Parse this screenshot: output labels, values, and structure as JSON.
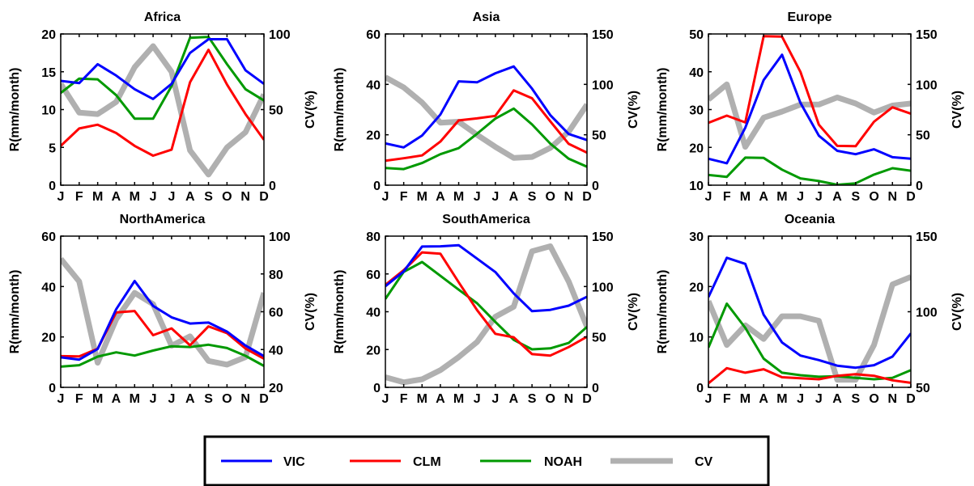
{
  "months": [
    "J",
    "F",
    "M",
    "A",
    "M",
    "J",
    "J",
    "A",
    "S",
    "O",
    "N",
    "D"
  ],
  "series_styles": [
    {
      "name": "VIC",
      "color": "#0000ff",
      "width": 3
    },
    {
      "name": "CLM",
      "color": "#ff0000",
      "width": 3
    },
    {
      "name": "NOAH",
      "color": "#009900",
      "width": 3
    },
    {
      "name": "CV",
      "color": "#b0b0b0",
      "width": 7
    }
  ],
  "chart_data": [
    {
      "type": "line",
      "title": "Africa",
      "ylabel": "R(mm/month)",
      "ylim": [
        0,
        20
      ],
      "yticks": [
        0,
        5,
        10,
        15,
        20
      ],
      "y2label": "CV(%)",
      "y2lim": [
        0,
        100
      ],
      "y2ticks": [
        0,
        50,
        100
      ],
      "categories": [
        "J",
        "F",
        "M",
        "A",
        "M",
        "J",
        "J",
        "A",
        "S",
        "O",
        "N",
        "D"
      ],
      "series": [
        {
          "name": "VIC",
          "axis": "left",
          "values": [
            13.8,
            13.5,
            16.0,
            14.5,
            12.7,
            11.4,
            13.4,
            17.5,
            19.3,
            19.3,
            15.2,
            13.4
          ]
        },
        {
          "name": "CLM",
          "axis": "left",
          "values": [
            5.2,
            7.5,
            8.0,
            6.9,
            5.2,
            3.9,
            4.7,
            13.6,
            17.9,
            13.3,
            9.4,
            6.0
          ]
        },
        {
          "name": "NOAH",
          "axis": "left",
          "values": [
            12.2,
            14.1,
            14.0,
            11.9,
            8.8,
            8.8,
            13.1,
            19.5,
            19.6,
            16.0,
            12.7,
            11.2
          ]
        },
        {
          "name": "CV",
          "axis": "right",
          "values": [
            67,
            48,
            47,
            55,
            78,
            92,
            75,
            23,
            7,
            25,
            35,
            60
          ]
        }
      ]
    },
    {
      "type": "line",
      "title": "Asia",
      "ylabel": "R(mm/month)",
      "ylim": [
        0,
        60
      ],
      "yticks": [
        0,
        20,
        40,
        60
      ],
      "y2label": "CV(%)",
      "y2lim": [
        0,
        150
      ],
      "y2ticks": [
        0,
        50,
        100,
        150
      ],
      "categories": [
        "J",
        "F",
        "M",
        "A",
        "M",
        "J",
        "J",
        "A",
        "S",
        "O",
        "N",
        "D"
      ],
      "series": [
        {
          "name": "VIC",
          "axis": "left",
          "values": [
            16.6,
            15.0,
            19.7,
            28.0,
            41.2,
            40.8,
            44.4,
            47.1,
            38.3,
            27.8,
            20.3,
            17.9
          ]
        },
        {
          "name": "CLM",
          "axis": "left",
          "values": [
            9.7,
            10.7,
            11.8,
            17.3,
            25.7,
            26.5,
            27.5,
            37.6,
            34.5,
            25.3,
            16.4,
            12.9
          ]
        },
        {
          "name": "NOAH",
          "axis": "left",
          "values": [
            6.8,
            6.4,
            8.8,
            12.3,
            14.7,
            20.4,
            26.4,
            30.4,
            24.1,
            16.5,
            10.5,
            7.3
          ]
        },
        {
          "name": "CV",
          "axis": "right",
          "values": [
            107,
            97,
            82,
            62,
            63,
            50,
            38,
            27,
            28,
            37,
            53,
            80
          ]
        }
      ]
    },
    {
      "type": "line",
      "title": "Europe",
      "ylabel": "R(mm/month)",
      "ylim": [
        10,
        50
      ],
      "yticks": [
        10,
        20,
        30,
        40,
        50
      ],
      "y2label": "CV(%)",
      "y2lim": [
        0,
        150
      ],
      "y2ticks": [
        0,
        50,
        100,
        150
      ],
      "categories": [
        "J",
        "F",
        "M",
        "A",
        "M",
        "J",
        "J",
        "A",
        "S",
        "O",
        "N",
        "D"
      ],
      "series": [
        {
          "name": "VIC",
          "axis": "left",
          "values": [
            17.0,
            15.8,
            25.2,
            37.8,
            44.5,
            31.8,
            23.1,
            19.1,
            18.2,
            19.5,
            17.4,
            17.0
          ]
        },
        {
          "name": "CLM",
          "axis": "left",
          "values": [
            26.5,
            28.4,
            26.6,
            49.4,
            49.3,
            40.0,
            26.0,
            20.4,
            20.3,
            26.8,
            30.6,
            28.9
          ]
        },
        {
          "name": "NOAH",
          "axis": "left",
          "values": [
            12.7,
            12.2,
            17.3,
            17.2,
            14.1,
            11.8,
            11.1,
            10.1,
            10.5,
            12.8,
            14.5,
            13.8
          ]
        },
        {
          "name": "CV",
          "axis": "right",
          "values": [
            85,
            100,
            38,
            67,
            73,
            80,
            80,
            87,
            81,
            72,
            79,
            81
          ]
        }
      ]
    },
    {
      "type": "line",
      "title": "NorthAmerica",
      "ylabel": "R(mm/month)",
      "ylim": [
        0,
        60
      ],
      "yticks": [
        0,
        20,
        40,
        60
      ],
      "y2label": "CV(%)",
      "y2lim": [
        20,
        100
      ],
      "y2ticks": [
        20,
        40,
        60,
        80,
        100
      ],
      "categories": [
        "J",
        "F",
        "M",
        "A",
        "M",
        "J",
        "J",
        "A",
        "S",
        "O",
        "N",
        "D"
      ],
      "series": [
        {
          "name": "VIC",
          "axis": "left",
          "values": [
            11.9,
            11.0,
            15.2,
            31.0,
            42.2,
            32.3,
            27.8,
            25.3,
            25.7,
            22.1,
            16.6,
            12.4
          ]
        },
        {
          "name": "CLM",
          "axis": "left",
          "values": [
            12.4,
            12.3,
            15.3,
            29.7,
            30.3,
            20.7,
            23.4,
            16.7,
            24.2,
            21.5,
            15.4,
            11.4
          ]
        },
        {
          "name": "NOAH",
          "axis": "left",
          "values": [
            8.2,
            8.8,
            12.2,
            13.9,
            12.6,
            14.6,
            16.3,
            16.0,
            16.9,
            15.6,
            12.5,
            8.5
          ]
        },
        {
          "name": "CV",
          "axis": "right",
          "values": [
            88,
            76,
            33,
            56,
            70,
            64,
            42,
            47,
            34,
            32,
            36,
            70
          ]
        }
      ]
    },
    {
      "type": "line",
      "title": "SouthAmerica",
      "ylabel": "R(mm/month)",
      "ylim": [
        0,
        80
      ],
      "yticks": [
        0,
        20,
        40,
        60,
        80
      ],
      "y2label": "CV(%)",
      "y2lim": [
        0,
        150
      ],
      "y2ticks": [
        0,
        50,
        100,
        150
      ],
      "categories": [
        "J",
        "F",
        "M",
        "A",
        "M",
        "J",
        "J",
        "A",
        "S",
        "O",
        "N",
        "D"
      ],
      "series": [
        {
          "name": "VIC",
          "axis": "left",
          "values": [
            53.5,
            61.3,
            74.5,
            74.6,
            75.2,
            68.1,
            61.0,
            49.7,
            40.3,
            41.0,
            43.2,
            47.9
          ]
        },
        {
          "name": "CLM",
          "axis": "left",
          "values": [
            54.2,
            62.0,
            71.4,
            70.7,
            55.6,
            40.9,
            28.3,
            26.5,
            17.6,
            16.8,
            21.3,
            26.8
          ]
        },
        {
          "name": "NOAH",
          "axis": "left",
          "values": [
            46.8,
            61.1,
            66.3,
            59.0,
            51.7,
            44.5,
            34.6,
            25.1,
            20.1,
            20.6,
            23.5,
            32.0
          ]
        },
        {
          "name": "CV",
          "axis": "right",
          "values": [
            10,
            5,
            8,
            17,
            30,
            45,
            70,
            80,
            135,
            140,
            105,
            60
          ]
        }
      ]
    },
    {
      "type": "line",
      "title": "Oceania",
      "ylabel": "R(mm/month)",
      "ylim": [
        0,
        30
      ],
      "yticks": [
        0,
        10,
        20,
        30
      ],
      "y2label": "CV(%)",
      "y2lim": [
        50,
        150
      ],
      "y2ticks": [
        50,
        100,
        150
      ],
      "categories": [
        "J",
        "F",
        "M",
        "A",
        "M",
        "J",
        "J",
        "A",
        "S",
        "O",
        "N",
        "D"
      ],
      "series": [
        {
          "name": "VIC",
          "axis": "left",
          "values": [
            17.9,
            25.7,
            24.5,
            14.4,
            8.9,
            6.3,
            5.4,
            4.3,
            3.9,
            4.4,
            6.1,
            10.7
          ]
        },
        {
          "name": "CLM",
          "axis": "left",
          "values": [
            0.8,
            3.8,
            2.9,
            3.6,
            2.0,
            1.8,
            1.6,
            2.3,
            2.6,
            2.3,
            1.4,
            0.9
          ]
        },
        {
          "name": "NOAH",
          "axis": "left",
          "values": [
            7.9,
            16.6,
            11.8,
            5.7,
            2.9,
            2.4,
            2.1,
            2.2,
            1.9,
            1.6,
            1.9,
            3.4
          ]
        },
        {
          "name": "CV",
          "axis": "right",
          "values": [
            107,
            78,
            91,
            82,
            97,
            97,
            94,
            55,
            55,
            78,
            118,
            123
          ]
        }
      ]
    }
  ],
  "legend": {
    "entries": [
      "VIC",
      "CLM",
      "NOAH",
      "CV"
    ]
  }
}
